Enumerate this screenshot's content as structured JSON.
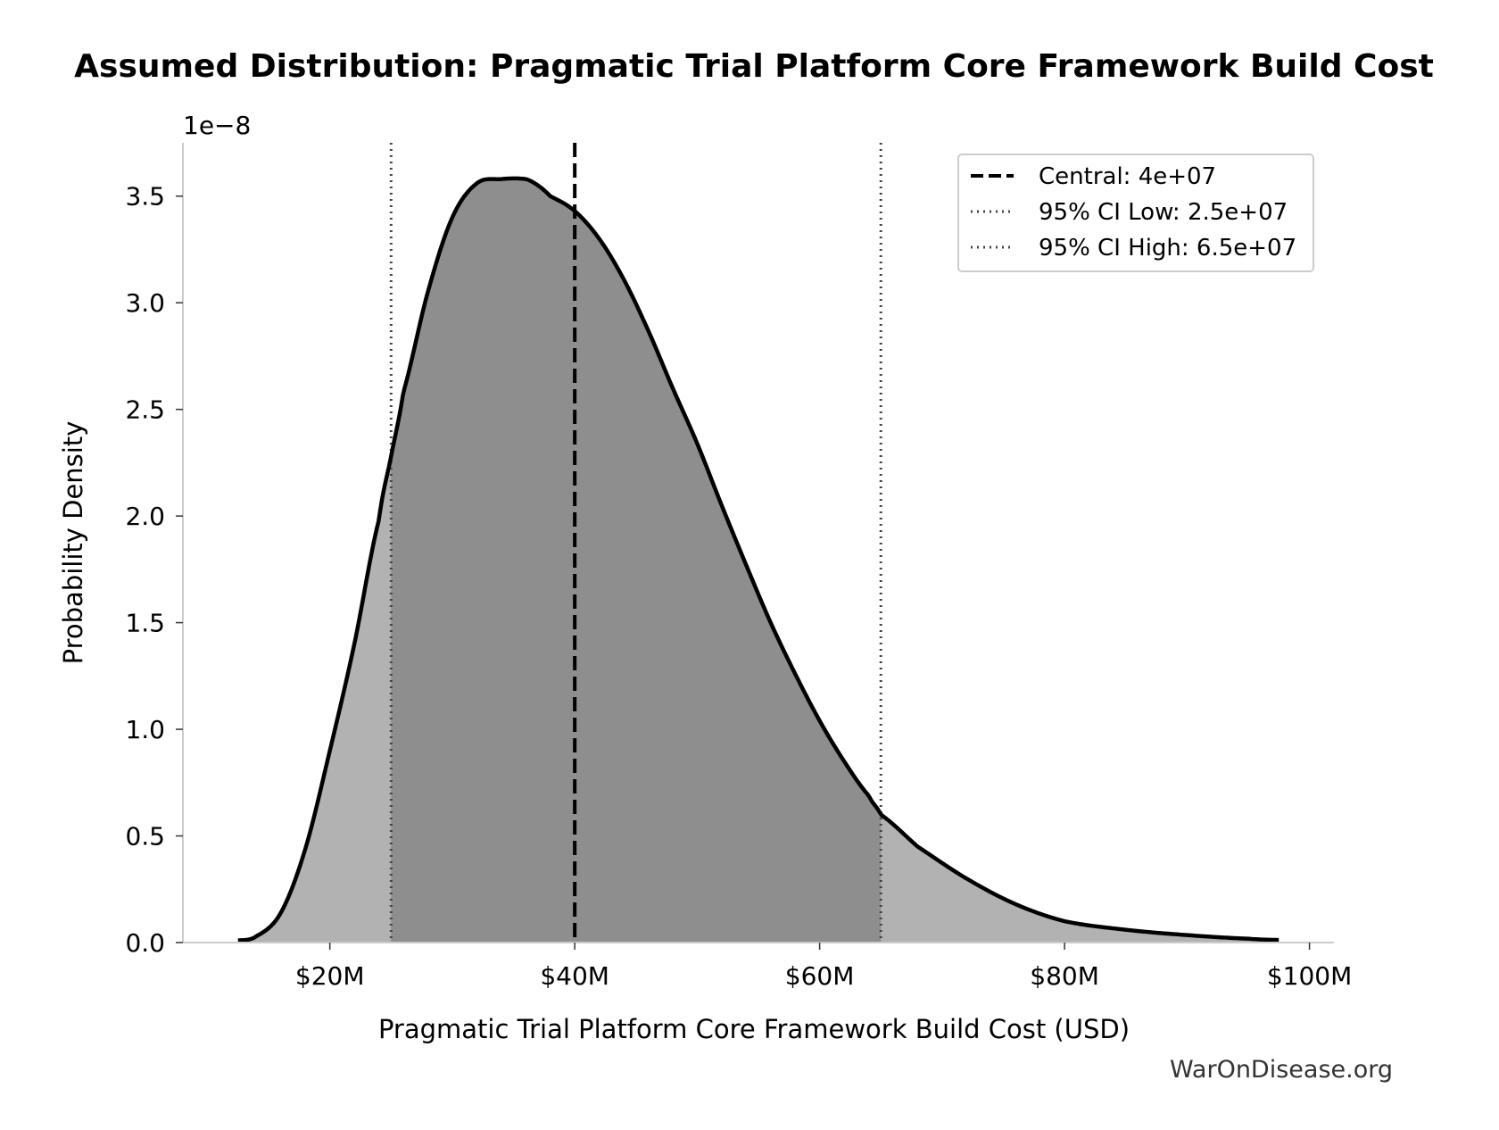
{
  "chart_data": {
    "type": "area",
    "title": "Assumed Distribution: Pragmatic Trial Platform Core Framework Build Cost",
    "xlabel": "Pragmatic Trial Platform Core Framework Build Cost (USD)",
    "ylabel": "Probability Density",
    "y_offset_text": "1e−8",
    "y_scale": 1e-08,
    "xlim": [
      8000000,
      102000000
    ],
    "ylim": [
      0,
      3.75
    ],
    "x_ticks": [
      20000000,
      40000000,
      60000000,
      80000000,
      100000000
    ],
    "x_tick_labels": [
      "$20M",
      "$40M",
      "$60M",
      "$80M",
      "$100M"
    ],
    "y_ticks": [
      0.0,
      0.5,
      1.0,
      1.5,
      2.0,
      2.5,
      3.0,
      3.5
    ],
    "y_tick_labels": [
      "0.0",
      "0.5",
      "1.0",
      "1.5",
      "2.0",
      "2.5",
      "3.0",
      "3.5"
    ],
    "grid": false,
    "legend_position": "top-right",
    "distribution": {
      "x": [
        12500000,
        14000000,
        16000000,
        18000000,
        20000000,
        22000000,
        24000000,
        25000000,
        26000000,
        28000000,
        30000000,
        32000000,
        34000000,
        36000000,
        37000000,
        38000000,
        40000000,
        42000000,
        44000000,
        46000000,
        48000000,
        50000000,
        52000000,
        54000000,
        56000000,
        58000000,
        60000000,
        62000000,
        64000000,
        65000000,
        68000000,
        72000000,
        76000000,
        80000000,
        85000000,
        90000000,
        95000000,
        97500000
      ],
      "y": [
        0.01,
        0.03,
        0.14,
        0.44,
        0.9,
        1.4,
        1.98,
        2.28,
        2.58,
        3.05,
        3.4,
        3.56,
        3.58,
        3.58,
        3.55,
        3.5,
        3.43,
        3.3,
        3.11,
        2.87,
        2.6,
        2.34,
        2.05,
        1.77,
        1.5,
        1.26,
        1.04,
        0.85,
        0.69,
        0.6,
        0.45,
        0.3,
        0.18,
        0.1,
        0.06,
        0.035,
        0.018,
        0.012
      ]
    },
    "ci_low": 25000000,
    "ci_high": 65000000,
    "central": 40000000,
    "colors": {
      "tail_fill": "#b2b2b2",
      "ci_fill": "#8e8e8e",
      "curve": "#000000",
      "ci_line": "#444444"
    },
    "legend": [
      {
        "label": "Central: 4e+07",
        "style": "dashed"
      },
      {
        "label": "95% CI Low: 2.5e+07",
        "style": "dotted"
      },
      {
        "label": "95% CI High: 6.5e+07",
        "style": "dotted"
      }
    ],
    "watermark": "WarOnDisease.org"
  }
}
